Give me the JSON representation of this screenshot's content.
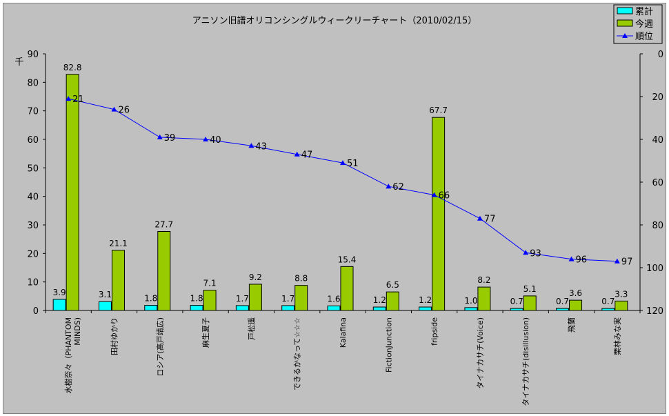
{
  "chart_data": {
    "type": "bar",
    "title": "アニソン旧譜オリコンシングルウィークリーチャート（2010/02/15）",
    "ylabel": "千",
    "ylim": [
      0,
      90
    ],
    "y_ticks": [
      0,
      10,
      20,
      30,
      40,
      50,
      60,
      70,
      80,
      90
    ],
    "y2lim": [
      0,
      120
    ],
    "y2_reversed": true,
    "y2_ticks": [
      0,
      20,
      40,
      60,
      80,
      100,
      120
    ],
    "grid": false,
    "legend_position": "top-right",
    "categories": [
      "水樹奈々（PHANTOM MINDS)",
      "田村ゆかり",
      "ロシア(高戸靖広)",
      "麻生夏子",
      "戸松遥",
      "できるかなって☆☆☆",
      "Kalafina",
      "FictionJunction",
      "fripside",
      "タイナカサチ(Voice)",
      "タイナカサチ(disillusion)",
      "飛蘭",
      "栗林みな実"
    ],
    "series": [
      {
        "name": "累計",
        "type": "bar",
        "color": "#00ffff",
        "values": [
          3.9,
          3.1,
          1.8,
          1.8,
          1.7,
          1.7,
          1.6,
          1.2,
          1.2,
          1.0,
          0.7,
          0.7,
          0.7
        ],
        "labels": [
          "3.9",
          "3.1",
          "1.8",
          "1.8",
          "1.7",
          "1.7",
          "1.6",
          "1.2",
          "1.2",
          "1.0",
          "0.7",
          "0.7",
          "0.7"
        ]
      },
      {
        "name": "今週",
        "type": "bar",
        "color": "#99cc00",
        "values": [
          82.8,
          21.1,
          27.7,
          7.1,
          9.2,
          8.8,
          15.4,
          6.5,
          67.7,
          8.2,
          5.1,
          3.6,
          3.3
        ]
      },
      {
        "name": "順位",
        "type": "line",
        "axis": "right",
        "color": "#0000ff",
        "values": [
          21,
          26,
          39,
          40,
          43,
          47,
          51,
          62,
          66,
          77,
          93,
          96,
          97
        ]
      }
    ]
  }
}
